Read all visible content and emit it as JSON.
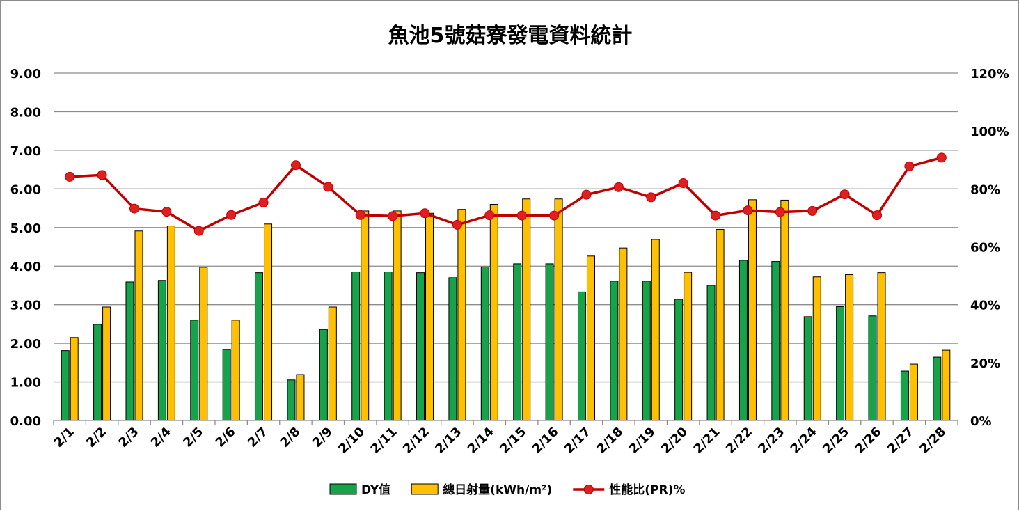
{
  "chart_data": {
    "type": "bar",
    "title": "魚池5號菇寮發電資料統計",
    "categories": [
      "2/1",
      "2/2",
      "2/3",
      "2/4",
      "2/5",
      "2/6",
      "2/7",
      "2/8",
      "2/9",
      "2/10",
      "2/11",
      "2/12",
      "2/13",
      "2/14",
      "2/15",
      "2/16",
      "2/17",
      "2/18",
      "2/19",
      "2/20",
      "2/21",
      "2/22",
      "2/23",
      "2/24",
      "2/25",
      "2/26",
      "2/27",
      "2/28"
    ],
    "series": [
      {
        "name": "DY值",
        "type": "bar",
        "axis": "left",
        "color": "#16a34a",
        "values": [
          1.81,
          2.49,
          3.59,
          3.63,
          2.6,
          1.84,
          3.83,
          1.05,
          2.36,
          3.85,
          3.85,
          3.83,
          3.7,
          3.98,
          4.06,
          4.06,
          3.33,
          3.61,
          3.61,
          3.14,
          3.5,
          4.15,
          4.12,
          2.69,
          2.95,
          2.71,
          1.28,
          1.64
        ]
      },
      {
        "name": "總日射量(kWh/m²)",
        "type": "bar",
        "axis": "left",
        "color": "#ffc000",
        "values": [
          2.15,
          2.94,
          4.91,
          5.04,
          3.97,
          2.6,
          5.09,
          1.19,
          2.94,
          5.43,
          5.43,
          5.37,
          5.47,
          5.6,
          5.74,
          5.74,
          4.26,
          4.47,
          4.69,
          3.84,
          4.95,
          5.72,
          5.71,
          3.72,
          3.78,
          3.83,
          1.46,
          1.82
        ]
      },
      {
        "name": "性能比(PR)%",
        "type": "line",
        "axis": "right",
        "color": "#c00000",
        "values": [
          84.2,
          84.8,
          73.2,
          72.1,
          65.5,
          71.0,
          75.3,
          88.2,
          80.7,
          71.0,
          70.6,
          71.6,
          67.6,
          70.9,
          70.8,
          70.8,
          78.0,
          80.6,
          77.1,
          82.0,
          70.8,
          72.6,
          72.0,
          72.4,
          78.1,
          70.9,
          87.8,
          90.8
        ]
      }
    ],
    "y_left": {
      "min": 0,
      "max": 9,
      "step": 1,
      "tick_labels": [
        "0.00",
        "1.00",
        "2.00",
        "3.00",
        "4.00",
        "5.00",
        "6.00",
        "7.00",
        "8.00",
        "9.00"
      ]
    },
    "y_right": {
      "min": 0,
      "max": 120,
      "step": 20,
      "tick_labels": [
        "0%",
        "20%",
        "40%",
        "60%",
        "80%",
        "100%",
        "120%"
      ]
    },
    "grid": true,
    "legend_position": "bottom"
  }
}
